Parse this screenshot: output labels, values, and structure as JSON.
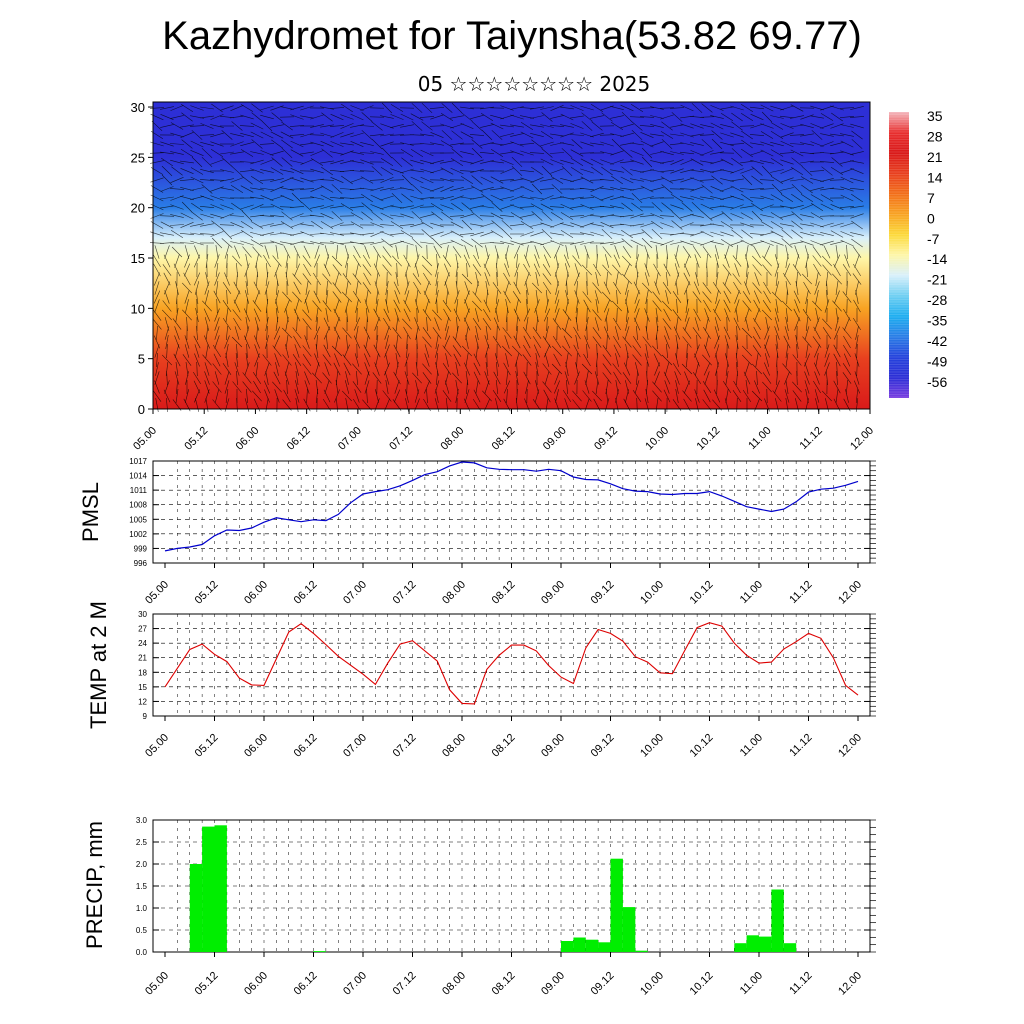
{
  "header": {
    "title": "Kazhydromet for Taiynsha(53.82 69.77)",
    "subtitle": "05 ☆☆☆☆☆☆☆☆ 2025"
  },
  "time_axis_labels": [
    "05.00",
    "05.12",
    "06.00",
    "06.12",
    "07.00",
    "07.12",
    "08.00",
    "08.12",
    "09.00",
    "09.12",
    "10.00",
    "10.12",
    "11.00",
    "11.12",
    "12.00"
  ],
  "colors": {
    "pmsl_line": "#0000cc",
    "temp_line": "#dd0000",
    "precip_bar": "#00ee00",
    "grid": "#000000"
  },
  "chart_data": [
    {
      "type": "heatmap",
      "name": "cross-section temperature and wind",
      "title": "",
      "y_ticks": [
        0,
        5,
        10,
        15,
        20,
        25,
        30
      ],
      "ylim": [
        0,
        30.5
      ],
      "x_categories": [
        "05.00",
        "05.12",
        "06.00",
        "06.12",
        "07.00",
        "07.12",
        "08.00",
        "08.12",
        "09.00",
        "09.12",
        "10.00",
        "10.12",
        "11.00",
        "11.12",
        "12.00"
      ],
      "colorbar": {
        "labels": [
          35,
          28,
          21,
          14,
          7,
          0,
          -7,
          -14,
          -21,
          -28,
          -35,
          -42,
          -49,
          -56
        ],
        "stops": [
          "#f4b7bd",
          "#e83030",
          "#d91a1a",
          "#e8401f",
          "#f26f1a",
          "#f8a323",
          "#fcd93a",
          "#fef6a8",
          "#d9f0fb",
          "#6fcff2",
          "#1eaef0",
          "#2a7de6",
          "#2543dc",
          "#2d2fd6",
          "#7a3ee0"
        ]
      },
      "temperature_profile": [
        {
          "height": 0,
          "temp": 25
        },
        {
          "height": 5,
          "temp": 18
        },
        {
          "height": 10,
          "temp": 5
        },
        {
          "height": 15,
          "temp": -8
        },
        {
          "height": 17,
          "temp": -18
        },
        {
          "height": 20,
          "temp": -40
        },
        {
          "height": 25,
          "temp": -56
        },
        {
          "height": 30,
          "temp": -52
        }
      ],
      "wind_barbs": true
    },
    {
      "type": "line",
      "name": "PMSL",
      "ylabel": "PMSL",
      "y_ticks": [
        996,
        999,
        1002,
        1005,
        1008,
        1011,
        1014,
        1017
      ],
      "ylim": [
        996,
        1017
      ],
      "x_categories": [
        "05.00",
        "05.12",
        "06.00",
        "06.12",
        "07.00",
        "07.12",
        "08.00",
        "08.12",
        "09.00",
        "09.12",
        "10.00",
        "10.12",
        "11.00",
        "11.12",
        "12.00"
      ],
      "x_steps": [
        0,
        1,
        2,
        3,
        4,
        5,
        6,
        7,
        8,
        9,
        10,
        11,
        12,
        13,
        14,
        15,
        16,
        17,
        18,
        19,
        20,
        21,
        22,
        23,
        24,
        25,
        26,
        27,
        28,
        29,
        30,
        31,
        32,
        33,
        34,
        35,
        36,
        37,
        38,
        39,
        40,
        41,
        42,
        43,
        44,
        45,
        46,
        47,
        48,
        49,
        50,
        51,
        52,
        53,
        54,
        55,
        56
      ],
      "values": [
        998.5,
        999.0,
        999.3,
        999.8,
        1001.6,
        1002.8,
        1002.7,
        1003.2,
        1004.4,
        1005.3,
        1004.9,
        1004.5,
        1004.9,
        1004.7,
        1006.0,
        1008.4,
        1010.2,
        1010.7,
        1011.1,
        1011.9,
        1013.0,
        1014.2,
        1014.8,
        1016.0,
        1016.8,
        1016.6,
        1015.6,
        1015.3,
        1015.2,
        1015.2,
        1014.9,
        1015.3,
        1015.0,
        1013.7,
        1013.2,
        1013.1,
        1012.3,
        1011.3,
        1010.8,
        1010.7,
        1010.2,
        1010.1,
        1010.3,
        1010.3,
        1010.7,
        1009.8,
        1008.7,
        1007.6,
        1007.1,
        1006.6,
        1007.1,
        1008.6,
        1010.6,
        1011.2,
        1011.4,
        1012.0,
        1012.8
      ]
    },
    {
      "type": "line",
      "name": "TEMP at 2 M",
      "ylabel": "TEMP at 2 M",
      "y_ticks": [
        9,
        12,
        15,
        18,
        21,
        24,
        27,
        30
      ],
      "ylim": [
        9,
        30
      ],
      "x_categories": [
        "05.00",
        "05.12",
        "06.00",
        "06.12",
        "07.00",
        "07.12",
        "08.00",
        "08.12",
        "09.00",
        "09.12",
        "10.00",
        "10.12",
        "11.00",
        "11.12",
        "12.00"
      ],
      "x_steps": [
        0,
        2,
        3,
        4,
        5,
        6,
        7,
        8,
        10,
        11,
        12,
        13,
        14,
        16,
        17,
        18,
        19,
        20,
        22,
        23,
        24,
        25,
        26,
        27,
        28,
        29,
        30,
        31,
        32,
        33,
        34,
        35,
        36,
        37,
        38,
        39,
        40,
        41,
        42,
        43,
        44,
        45,
        46,
        47,
        48,
        49,
        50,
        51,
        52,
        53,
        54,
        55,
        56
      ],
      "values": [
        15.0,
        22.7,
        23.8,
        21.7,
        20.2,
        16.8,
        15.4,
        15.3,
        26.3,
        28.0,
        26.0,
        23.7,
        21.3,
        17.6,
        15.5,
        19.9,
        23.8,
        24.5,
        20.3,
        14.4,
        11.6,
        11.5,
        18.6,
        21.5,
        23.6,
        23.6,
        22.4,
        19.4,
        17.0,
        15.7,
        23.0,
        26.8,
        26.0,
        24.4,
        21.2,
        20.1,
        17.9,
        17.7,
        22.5,
        27.2,
        28.2,
        27.5,
        24.0,
        21.5,
        19.9,
        20.1,
        22.8,
        24.3,
        26.0,
        25.0,
        21.0,
        15.3,
        13.3
      ]
    },
    {
      "type": "bar",
      "name": "PRECIP, mm",
      "ylabel": "PRECIP, mm",
      "y_ticks": [
        0.0,
        0.5,
        1.0,
        1.5,
        2.0,
        2.5,
        3.0
      ],
      "y_tick_labels": [
        "0.0",
        "0.5",
        "1.0",
        "1.5",
        "2.0",
        "2.5",
        "3.0"
      ],
      "ylim": [
        0,
        3
      ],
      "x_categories": [
        "05.00",
        "05.12",
        "06.00",
        "06.12",
        "07.00",
        "07.12",
        "08.00",
        "08.12",
        "09.00",
        "09.12",
        "10.00",
        "10.12",
        "11.00",
        "11.12",
        "12.00"
      ],
      "x_steps": [
        0,
        1,
        2,
        3,
        4,
        5,
        6,
        7,
        8,
        9,
        10,
        11,
        12,
        13,
        14,
        15,
        16,
        17,
        18,
        19,
        20,
        21,
        22,
        23,
        24,
        25,
        26,
        27,
        28,
        29,
        30,
        31,
        32,
        33,
        34,
        35,
        36,
        37,
        38,
        39,
        40,
        41,
        42,
        43,
        44,
        45,
        46,
        47,
        48,
        49,
        50,
        51,
        52,
        53,
        54,
        55,
        56
      ],
      "values": [
        0,
        0,
        0,
        2.0,
        2.85,
        2.88,
        0,
        0,
        0,
        0,
        0,
        0,
        0,
        0.02,
        0,
        0,
        0,
        0,
        0,
        0,
        0,
        0,
        0,
        0,
        0,
        0,
        0,
        0,
        0,
        0,
        0,
        0,
        0,
        0.25,
        0.33,
        0.28,
        0.22,
        2.12,
        1.02,
        0.03,
        0,
        0,
        0,
        0,
        0,
        0,
        0,
        0.2,
        0.38,
        0.35,
        1.42,
        0.2,
        0,
        0,
        0,
        0,
        0
      ]
    }
  ]
}
